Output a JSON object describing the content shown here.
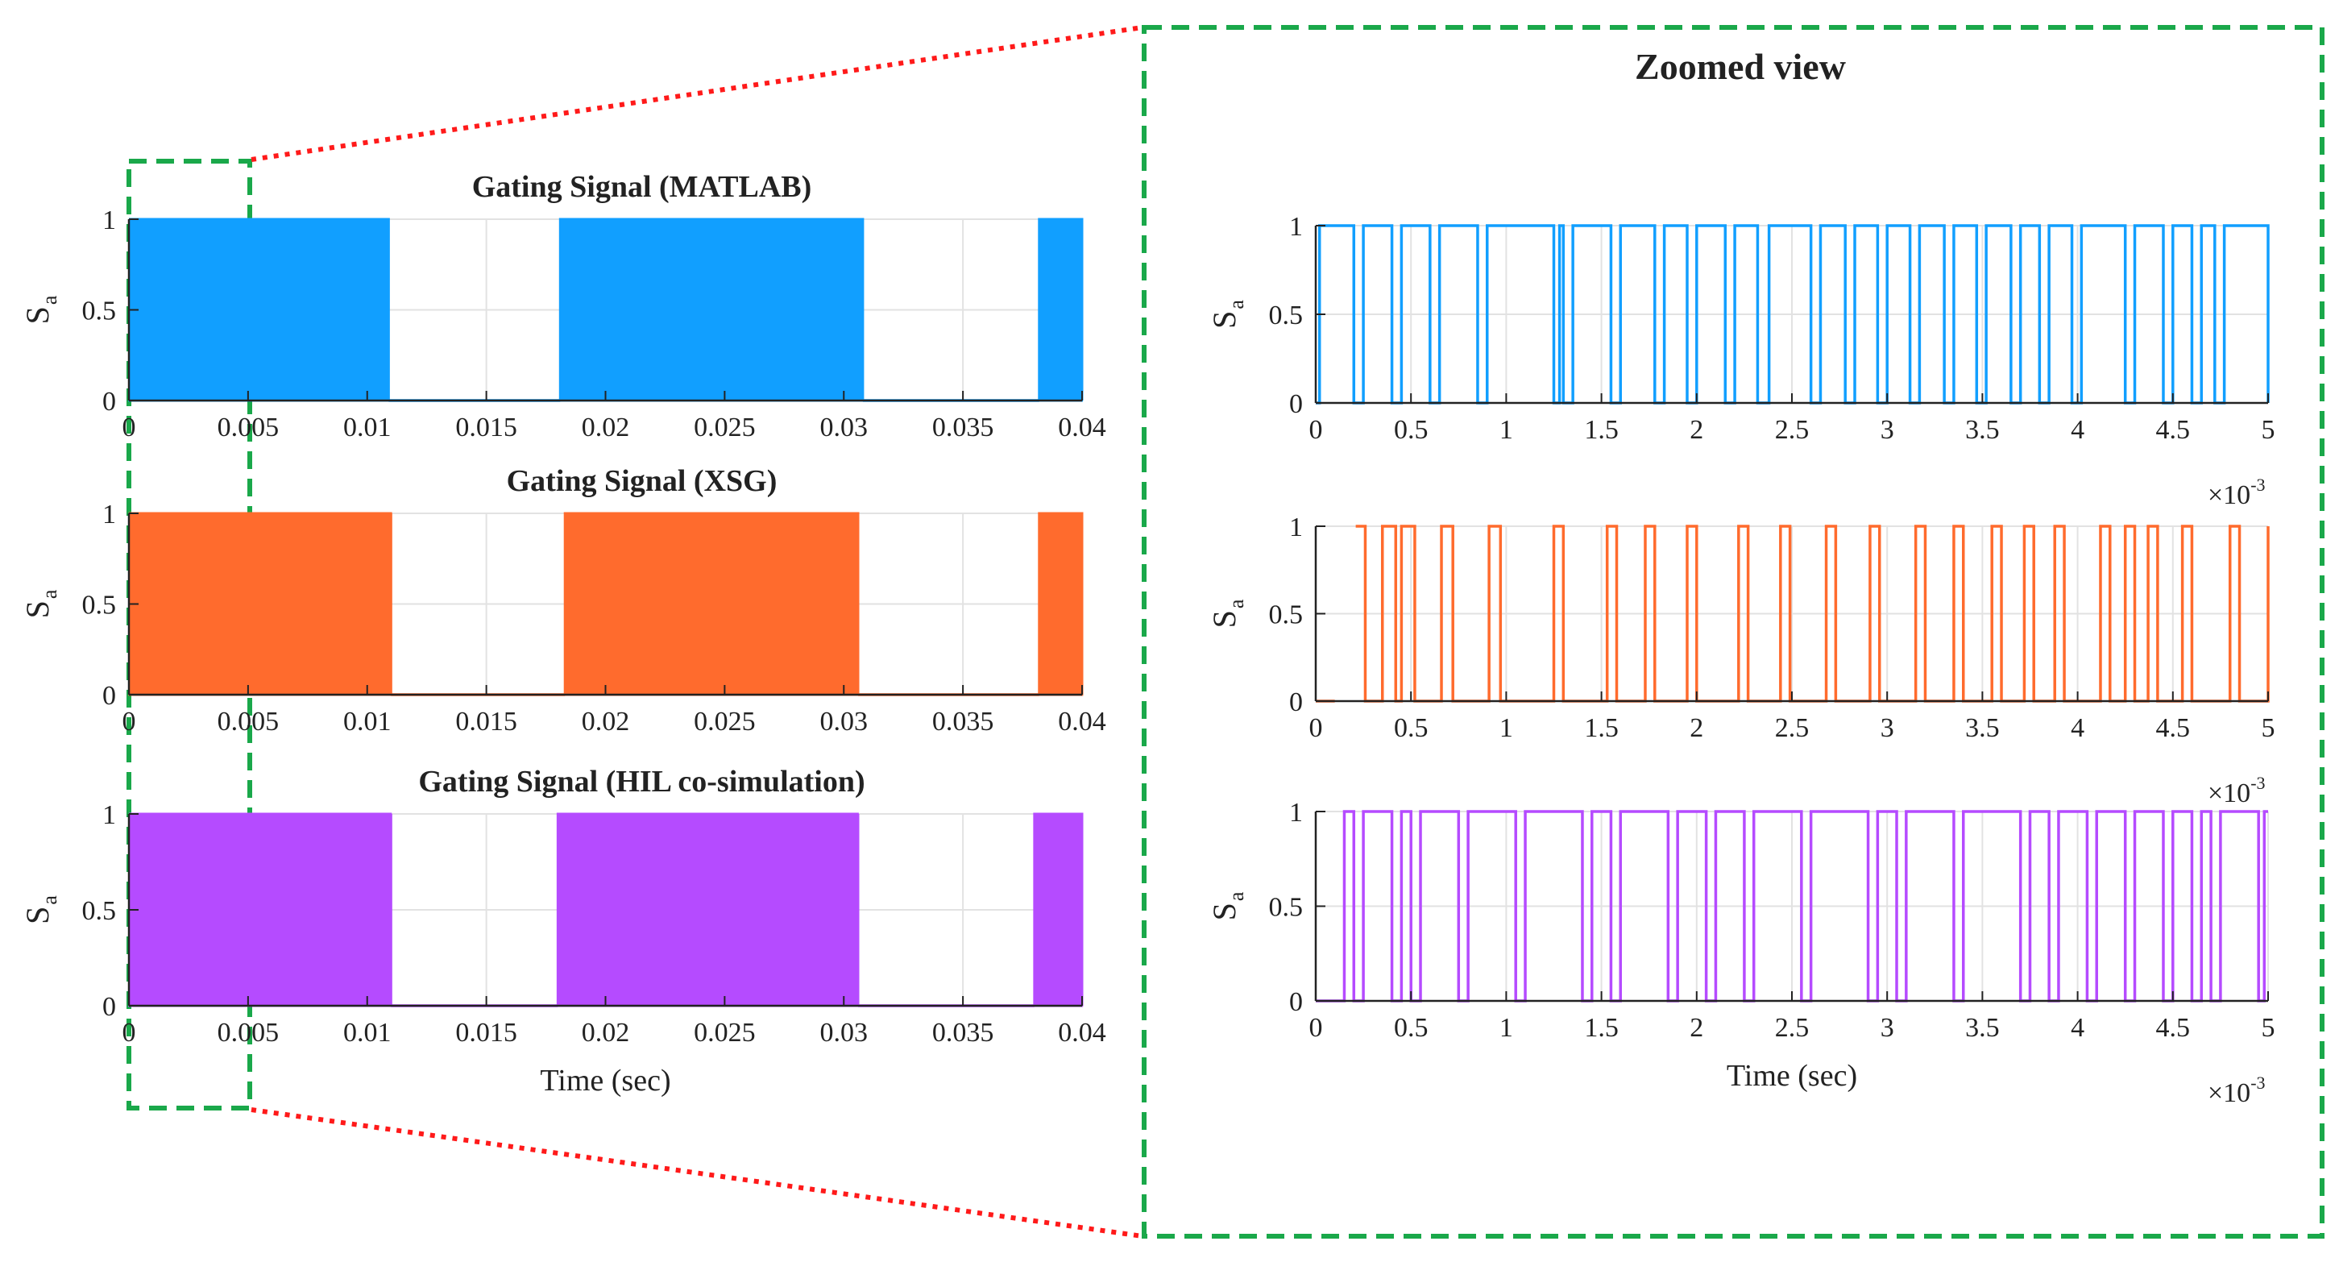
{
  "zoom_title": "Zoomed view",
  "colors": {
    "matlab": "#119fff",
    "xsg": "#ff6b2d",
    "hil": "#b54bff",
    "highlight_box": "#1aa84a",
    "connector": "#ff1a1a",
    "grid": "#e2e2e2",
    "axis": "#222222"
  },
  "chart_data": [
    {
      "id": "matlab-full",
      "type": "line",
      "title": "Gating Signal (MATLAB)",
      "ylabel": "S",
      "ylabel_sub": "a",
      "xlabel": "",
      "xlim": [
        0,
        0.04
      ],
      "ylim": [
        0,
        1
      ],
      "xticks": [
        0,
        0.005,
        0.01,
        0.015,
        0.02,
        0.025,
        0.03,
        0.035,
        0.04
      ],
      "xtick_labels": [
        "0",
        "0.005",
        "0.01",
        "0.015",
        "0.02",
        "0.025",
        "0.03",
        "0.035",
        "0.04"
      ],
      "yticks": [
        0,
        0.5,
        1
      ],
      "ytick_labels": [
        "0",
        "0.5",
        "1"
      ],
      "grid": true,
      "color_key": "matlab",
      "density_windows": [
        [
          0,
          0.0075,
          0.34
        ],
        [
          0.0075,
          0.0097,
          0.55
        ],
        [
          0.0097,
          0.0109,
          0.3
        ],
        [
          0.0181,
          0.0213,
          0.45
        ],
        [
          0.0213,
          0.0283,
          0.52
        ],
        [
          0.0283,
          0.0308,
          0.38
        ],
        [
          0.0382,
          0.04,
          0.58
        ]
      ],
      "low_segments": [
        [
          0.0109,
          0.0181
        ],
        [
          0.0308,
          0.0382
        ]
      ]
    },
    {
      "id": "xsg-full",
      "type": "line",
      "title": "Gating Signal (XSG)",
      "ylabel": "S",
      "ylabel_sub": "a",
      "xlabel": "",
      "xlim": [
        0,
        0.04
      ],
      "ylim": [
        0,
        1
      ],
      "xticks": [
        0,
        0.005,
        0.01,
        0.015,
        0.02,
        0.025,
        0.03,
        0.035,
        0.04
      ],
      "xtick_labels": [
        "0",
        "0.005",
        "0.01",
        "0.015",
        "0.02",
        "0.025",
        "0.03",
        "0.035",
        "0.04"
      ],
      "yticks": [
        0,
        0.5,
        1
      ],
      "ytick_labels": [
        "0",
        "0.5",
        "1"
      ],
      "grid": true,
      "color_key": "xsg",
      "density_windows": [
        [
          0,
          0.0075,
          0.36
        ],
        [
          0.0075,
          0.0098,
          0.6
        ],
        [
          0.0098,
          0.011,
          0.3
        ],
        [
          0.0183,
          0.0212,
          0.55
        ],
        [
          0.0212,
          0.0283,
          0.6
        ],
        [
          0.0283,
          0.0306,
          0.4
        ],
        [
          0.0382,
          0.04,
          0.62
        ]
      ],
      "low_segments": [
        [
          0.011,
          0.0183
        ],
        [
          0.0306,
          0.0382
        ]
      ]
    },
    {
      "id": "hil-full",
      "type": "line",
      "title": "Gating Signal (HIL co-simulation)",
      "ylabel": "S",
      "ylabel_sub": "a",
      "xlabel": "Time (sec)",
      "xlim": [
        0,
        0.04
      ],
      "ylim": [
        0,
        1
      ],
      "xticks": [
        0,
        0.005,
        0.01,
        0.015,
        0.02,
        0.025,
        0.03,
        0.035,
        0.04
      ],
      "xtick_labels": [
        "0",
        "0.005",
        "0.01",
        "0.015",
        "0.02",
        "0.025",
        "0.03",
        "0.035",
        "0.04"
      ],
      "yticks": [
        0,
        0.5,
        1
      ],
      "ytick_labels": [
        "0",
        "0.5",
        "1"
      ],
      "grid": true,
      "color_key": "hil",
      "density_windows": [
        [
          0,
          0.0075,
          0.38
        ],
        [
          0.0075,
          0.0098,
          0.62
        ],
        [
          0.0098,
          0.011,
          0.3
        ],
        [
          0.018,
          0.0212,
          0.55
        ],
        [
          0.0212,
          0.0285,
          0.62
        ],
        [
          0.0285,
          0.0306,
          0.4
        ],
        [
          0.038,
          0.04,
          0.62
        ]
      ],
      "low_segments": [
        [
          0.011,
          0.018
        ],
        [
          0.0306,
          0.038
        ]
      ]
    },
    {
      "id": "matlab-zoom",
      "type": "line",
      "title": "",
      "ylabel": "S",
      "ylabel_sub": "a",
      "xlabel": "",
      "xlim": [
        0,
        5
      ],
      "ylim": [
        0,
        1
      ],
      "x_multiplier": "×10",
      "x_multiplier_exp": "-3",
      "xticks": [
        0,
        0.5,
        1,
        1.5,
        2,
        2.5,
        3,
        3.5,
        4,
        4.5,
        5
      ],
      "xtick_labels": [
        "0",
        "0.5",
        "1",
        "1.5",
        "2",
        "2.5",
        "3",
        "3.5",
        "4",
        "4.5",
        "5"
      ],
      "yticks": [
        0,
        0.5,
        1
      ],
      "ytick_labels": [
        "0",
        "0.5",
        "1"
      ],
      "grid": true,
      "color_key": "matlab",
      "initial_level": 0,
      "transitions": [
        0.02,
        0.2,
        0.25,
        0.4,
        0.45,
        0.6,
        0.65,
        0.85,
        0.9,
        1.25,
        1.28,
        1.3,
        1.35,
        1.55,
        1.6,
        1.78,
        1.83,
        1.95,
        2.0,
        2.15,
        2.2,
        2.32,
        2.38,
        2.6,
        2.65,
        2.78,
        2.83,
        2.95,
        3.0,
        3.12,
        3.17,
        3.3,
        3.35,
        3.47,
        3.52,
        3.65,
        3.7,
        3.8,
        3.85,
        3.97,
        4.02,
        4.25,
        4.3,
        4.45,
        4.5,
        4.6,
        4.65,
        4.72,
        4.77,
        5.0
      ]
    },
    {
      "id": "xsg-zoom",
      "type": "line",
      "title": "",
      "ylabel": "S",
      "ylabel_sub": "a",
      "xlabel": "",
      "xlim": [
        0,
        5
      ],
      "ylim": [
        0,
        1
      ],
      "x_multiplier": "×10",
      "x_multiplier_exp": "-3",
      "xticks": [
        0,
        0.5,
        1,
        1.5,
        2,
        2.5,
        3,
        3.5,
        4,
        4.5,
        5
      ],
      "xtick_labels": [
        "0",
        "0.5",
        "1",
        "1.5",
        "2",
        "2.5",
        "3",
        "3.5",
        "4",
        "4.5",
        "5"
      ],
      "yticks": [
        0,
        0.5,
        1
      ],
      "ytick_labels": [
        "0",
        "0.5",
        "1"
      ],
      "grid": true,
      "color_key": "xsg",
      "initial_level": 0,
      "transitions": [
        0.1,
        0.2,
        0.26,
        0.35,
        0.42,
        0.45,
        0.52,
        0.66,
        0.72,
        0.91,
        0.97,
        1.25,
        1.3,
        1.53,
        1.58,
        1.73,
        1.78,
        1.95,
        2.0,
        2.22,
        2.27,
        2.44,
        2.49,
        2.68,
        2.73,
        2.91,
        2.96,
        3.15,
        3.2,
        3.35,
        3.4,
        3.55,
        3.6,
        3.72,
        3.77,
        3.88,
        3.93,
        4.12,
        4.17,
        4.25,
        4.3,
        4.37,
        4.42,
        4.55,
        4.6,
        4.8,
        4.85,
        5.0
      ],
      "hidden_until": 0.21
    },
    {
      "id": "hil-zoom",
      "type": "line",
      "title": "",
      "ylabel": "S",
      "ylabel_sub": "a",
      "xlabel": "Time (sec)",
      "xlim": [
        0,
        5
      ],
      "ylim": [
        0,
        1
      ],
      "x_multiplier": "×10",
      "x_multiplier_exp": "-3",
      "xticks": [
        0,
        0.5,
        1,
        1.5,
        2,
        2.5,
        3,
        3.5,
        4,
        4.5,
        5
      ],
      "xtick_labels": [
        "0",
        "0.5",
        "1",
        "1.5",
        "2",
        "2.5",
        "3",
        "3.5",
        "4",
        "4.5",
        "5"
      ],
      "yticks": [
        0,
        0.5,
        1
      ],
      "ytick_labels": [
        "0",
        "0.5",
        "1"
      ],
      "grid": true,
      "color_key": "hil",
      "initial_level": 0,
      "transitions": [
        0.15,
        0.2,
        0.25,
        0.4,
        0.45,
        0.5,
        0.55,
        0.75,
        0.8,
        1.05,
        1.1,
        1.4,
        1.45,
        1.55,
        1.6,
        1.85,
        1.9,
        2.05,
        2.1,
        2.25,
        2.3,
        2.55,
        2.6,
        2.9,
        2.95,
        3.05,
        3.1,
        3.35,
        3.4,
        3.7,
        3.75,
        3.85,
        3.9,
        4.05,
        4.1,
        4.25,
        4.3,
        4.45,
        4.5,
        4.6,
        4.65,
        4.7,
        4.75,
        4.95,
        4.98
      ]
    }
  ]
}
